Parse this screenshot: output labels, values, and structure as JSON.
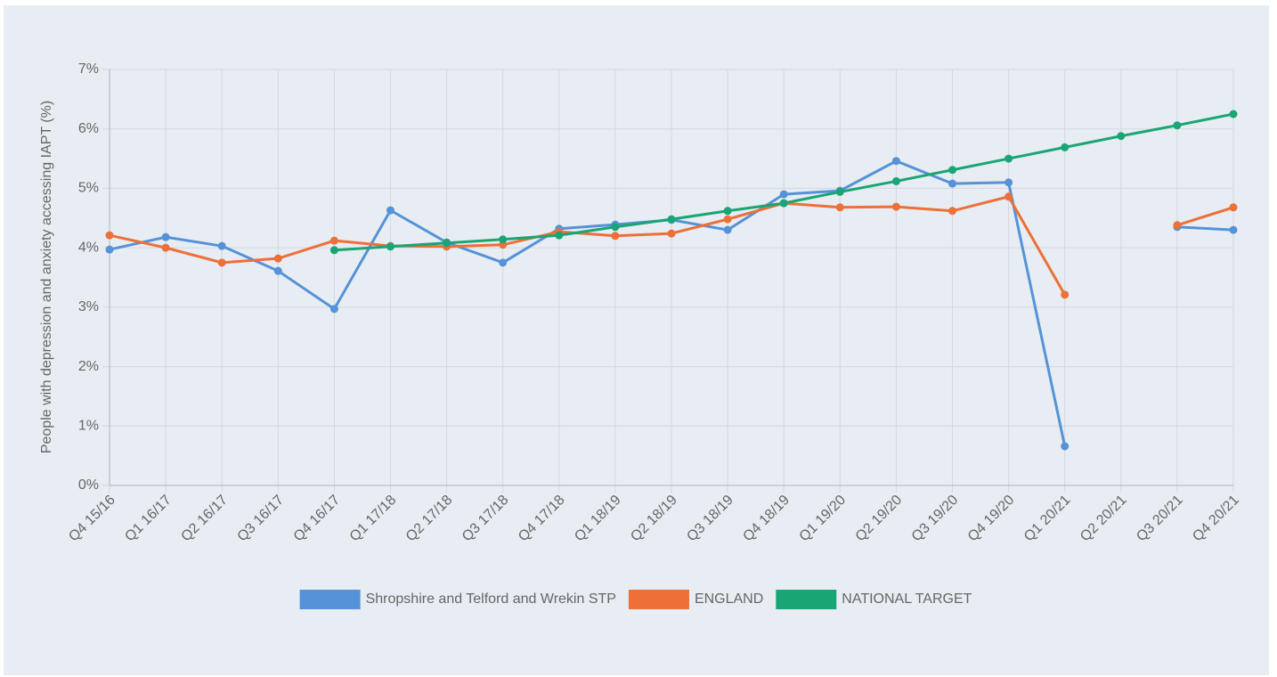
{
  "chart_data": {
    "type": "line",
    "y_label": "People with depression and anxiety accessing IAPT (%)",
    "categories": [
      "Q4 15/16",
      "Q1 16/17",
      "Q2 16/17",
      "Q3 16/17",
      "Q4 16/17",
      "Q1 17/18",
      "Q2 17/18",
      "Q3 17/18",
      "Q4 17/18",
      "Q1 18/19",
      "Q2 18/19",
      "Q3 18/19",
      "Q4 18/19",
      "Q1 19/20",
      "Q2 19/20",
      "Q3 19/20",
      "Q4 19/20",
      "Q1 20/21",
      "Q2 20/21",
      "Q3 20/21",
      "Q4 20/21"
    ],
    "series": [
      {
        "name": "Shropshire and Telford and Wrekin STP",
        "color": "#5592d8",
        "values": [
          3.97,
          4.18,
          4.03,
          3.61,
          2.97,
          4.63,
          4.09,
          3.75,
          4.32,
          4.39,
          4.47,
          4.3,
          4.9,
          4.96,
          5.46,
          5.08,
          5.1,
          0.66,
          null,
          4.35,
          4.3
        ]
      },
      {
        "name": "ENGLAND",
        "color": "#ec7038",
        "values": [
          4.21,
          4.0,
          3.75,
          3.82,
          4.12,
          4.03,
          4.02,
          4.05,
          4.27,
          4.2,
          4.24,
          4.48,
          4.75,
          4.68,
          4.69,
          4.62,
          4.86,
          3.21,
          null,
          4.38,
          4.68
        ]
      },
      {
        "name": "NATIONAL TARGET",
        "color": "#1aa574",
        "values": [
          null,
          null,
          null,
          null,
          3.96,
          4.02,
          4.08,
          4.14,
          4.21,
          4.35,
          4.48,
          4.62,
          4.75,
          4.94,
          5.12,
          5.31,
          5.5,
          5.69,
          5.88,
          6.06,
          6.25
        ]
      }
    ],
    "ylim": [
      0,
      7
    ],
    "yticks": [
      {
        "value": 0,
        "label": "0%"
      },
      {
        "value": 1,
        "label": "1%"
      },
      {
        "value": 2,
        "label": "2%"
      },
      {
        "value": 3,
        "label": "3%"
      },
      {
        "value": 4,
        "label": "4%"
      },
      {
        "value": 5,
        "label": "5%"
      },
      {
        "value": 6,
        "label": "6%"
      },
      {
        "value": 7,
        "label": "7%"
      }
    ],
    "grid": true,
    "legend": "bottom"
  }
}
